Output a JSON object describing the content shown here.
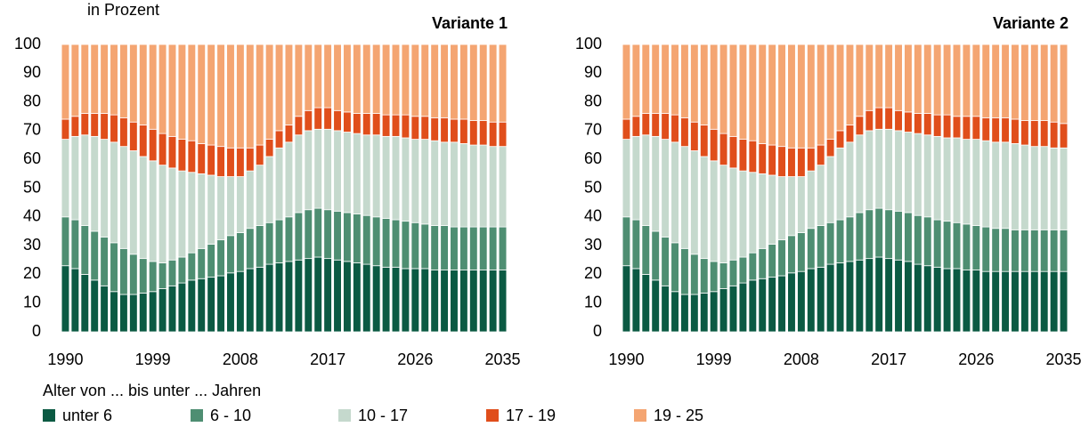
{
  "unit_label": "in Prozent",
  "legend_title": "Alter von ... bis unter ... Jahren",
  "chart_data": [
    {
      "type": "stacked_bar",
      "title": "Variante 1",
      "categories": [
        "1990",
        null,
        null,
        null,
        null,
        null,
        null,
        null,
        null,
        "1999",
        null,
        null,
        null,
        null,
        null,
        null,
        null,
        null,
        "2008",
        null,
        null,
        null,
        null,
        null,
        null,
        null,
        null,
        "2017",
        null,
        null,
        null,
        null,
        null,
        null,
        null,
        null,
        "2026",
        null,
        null,
        null,
        null,
        null,
        null,
        null,
        null,
        "2035"
      ],
      "ylim": [
        0,
        100
      ],
      "yticks": [
        0,
        10,
        20,
        30,
        40,
        50,
        60,
        70,
        80,
        90,
        100
      ],
      "grid": false,
      "series": [
        {
          "name": "unter 6",
          "color": "#0b5a43",
          "values": [
            23,
            22,
            20,
            18,
            16,
            14,
            13,
            13,
            13.5,
            14,
            15,
            16,
            17,
            18,
            18.5,
            19,
            19.5,
            20.5,
            21,
            22,
            22.5,
            23.5,
            24,
            24.5,
            25,
            25.5,
            26,
            25.5,
            25,
            24.5,
            24,
            23.5,
            23,
            22.5,
            22.5,
            22,
            22,
            22,
            21.5,
            21.5,
            21.5,
            21.5,
            21.5,
            21.5,
            21.5,
            21.5
          ]
        },
        {
          "name": "6 - 10",
          "color": "#4e8e72",
          "values": [
            17,
            17,
            17,
            17,
            17,
            17,
            16,
            14,
            12,
            10.5,
            9,
            9,
            9,
            9.5,
            10.5,
            11.5,
            12.5,
            13,
            13.5,
            14,
            14.5,
            14.5,
            15,
            15.5,
            16.5,
            17,
            17,
            17,
            17,
            17,
            17,
            17,
            17,
            17,
            16.5,
            16.5,
            16,
            15.5,
            15.5,
            15.5,
            15,
            15,
            15,
            15,
            15,
            15
          ]
        },
        {
          "name": "10 - 17",
          "color": "#c5d9cd",
          "values": [
            27,
            29,
            31.5,
            33,
            34,
            35,
            35.5,
            36,
            35.5,
            35,
            34,
            32,
            30,
            28,
            26,
            24,
            22,
            20.5,
            19.5,
            20,
            21,
            23,
            25,
            26,
            27,
            27.5,
            27.5,
            28,
            28,
            28,
            28,
            28,
            28.5,
            28.5,
            29,
            29,
            29,
            29.5,
            29.5,
            29,
            29.5,
            29,
            28.5,
            28.5,
            28,
            28
          ]
        },
        {
          "name": "17 - 19",
          "color": "#e04e1b",
          "values": [
            7,
            7,
            7.5,
            8,
            9,
            9.5,
            10,
            10,
            11,
            11,
            11,
            11,
            11,
            11,
            10.5,
            10.5,
            10.5,
            10,
            10,
            8,
            7,
            6,
            6,
            6,
            6.5,
            7,
            7.5,
            7.5,
            7,
            7,
            7,
            7.5,
            7.5,
            7.5,
            7.5,
            8,
            8,
            8,
            8,
            8.5,
            8,
            8.5,
            8.5,
            8.5,
            8.5,
            8.5
          ]
        },
        {
          "name": "19 - 25",
          "color": "#f4a572",
          "values": [
            26,
            25,
            24,
            24,
            24,
            24.5,
            25.5,
            27,
            28,
            29.5,
            31,
            32,
            33,
            33.5,
            34.5,
            35,
            35.5,
            36,
            36,
            36,
            35,
            33,
            30,
            28,
            25,
            23,
            22,
            22,
            23,
            23.5,
            24,
            24,
            24,
            24.5,
            24.5,
            24.5,
            25,
            25,
            25.5,
            25.5,
            26,
            26,
            26.5,
            26.5,
            27,
            27
          ]
        }
      ]
    },
    {
      "type": "stacked_bar",
      "title": "Variante 2",
      "categories": [
        "1990",
        null,
        null,
        null,
        null,
        null,
        null,
        null,
        null,
        "1999",
        null,
        null,
        null,
        null,
        null,
        null,
        null,
        null,
        "2008",
        null,
        null,
        null,
        null,
        null,
        null,
        null,
        null,
        "2017",
        null,
        null,
        null,
        null,
        null,
        null,
        null,
        null,
        "2026",
        null,
        null,
        null,
        null,
        null,
        null,
        null,
        null,
        "2035"
      ],
      "ylim": [
        0,
        100
      ],
      "yticks": [
        0,
        10,
        20,
        30,
        40,
        50,
        60,
        70,
        80,
        90,
        100
      ],
      "grid": false,
      "series": [
        {
          "name": "unter 6",
          "color": "#0b5a43",
          "values": [
            23,
            22,
            20,
            18,
            16,
            14,
            13,
            13,
            13.5,
            14,
            15,
            16,
            17,
            18,
            18.5,
            19,
            19.5,
            20.5,
            21,
            22,
            22.5,
            23.5,
            24,
            24.5,
            25,
            25.5,
            26,
            25.5,
            25,
            24.5,
            23.5,
            23,
            22.5,
            22,
            22,
            21.5,
            21.5,
            21,
            21,
            21,
            21,
            21,
            21,
            21,
            21,
            21
          ]
        },
        {
          "name": "6 - 10",
          "color": "#4e8e72",
          "values": [
            17,
            17,
            17,
            17,
            17,
            17,
            16,
            14,
            12,
            10.5,
            9,
            9,
            9,
            9.5,
            10.5,
            11.5,
            12.5,
            13,
            13.5,
            14,
            14.5,
            14.5,
            15,
            15.5,
            16.5,
            17,
            17,
            17,
            17,
            17,
            17,
            17,
            16.5,
            16.5,
            16,
            16,
            15.5,
            15.5,
            15,
            15,
            14.5,
            14.5,
            14.5,
            14.5,
            14.5,
            14.5
          ]
        },
        {
          "name": "10 - 17",
          "color": "#c5d9cd",
          "values": [
            27,
            29,
            31.5,
            33,
            34,
            35,
            35.5,
            36,
            35.5,
            35,
            34,
            32,
            30,
            28,
            26,
            24,
            22,
            20.5,
            19.5,
            20,
            21,
            23,
            25,
            26,
            27,
            27.5,
            27.5,
            28,
            28,
            28,
            28.5,
            28.5,
            29,
            29,
            29.5,
            29.5,
            30,
            30,
            30,
            30,
            30,
            29.5,
            29,
            29,
            28.5,
            28.5
          ]
        },
        {
          "name": "17 - 19",
          "color": "#e04e1b",
          "values": [
            7,
            7,
            7.5,
            8,
            9,
            9.5,
            10,
            10,
            11,
            11,
            11,
            11,
            11,
            11,
            10.5,
            10.5,
            10.5,
            10,
            10,
            8,
            7,
            6,
            6,
            6,
            6.5,
            7,
            7.5,
            7.5,
            7,
            7,
            7,
            7.5,
            7.5,
            8,
            7.5,
            8,
            8,
            8,
            8.5,
            8.5,
            8.5,
            8.5,
            9,
            9,
            9,
            8.5
          ]
        },
        {
          "name": "19 - 25",
          "color": "#f4a572",
          "values": [
            26,
            25,
            24,
            24,
            24,
            24.5,
            25.5,
            27,
            28,
            29.5,
            31,
            32,
            33,
            33.5,
            34.5,
            35,
            35.5,
            36,
            36,
            36,
            35,
            33,
            30,
            28,
            25,
            23,
            22,
            22,
            23,
            23.5,
            24,
            24,
            24.5,
            24.5,
            25,
            25,
            25,
            25.5,
            25.5,
            25.5,
            26,
            26.5,
            26.5,
            26.5,
            27,
            27.5
          ]
        }
      ]
    }
  ]
}
